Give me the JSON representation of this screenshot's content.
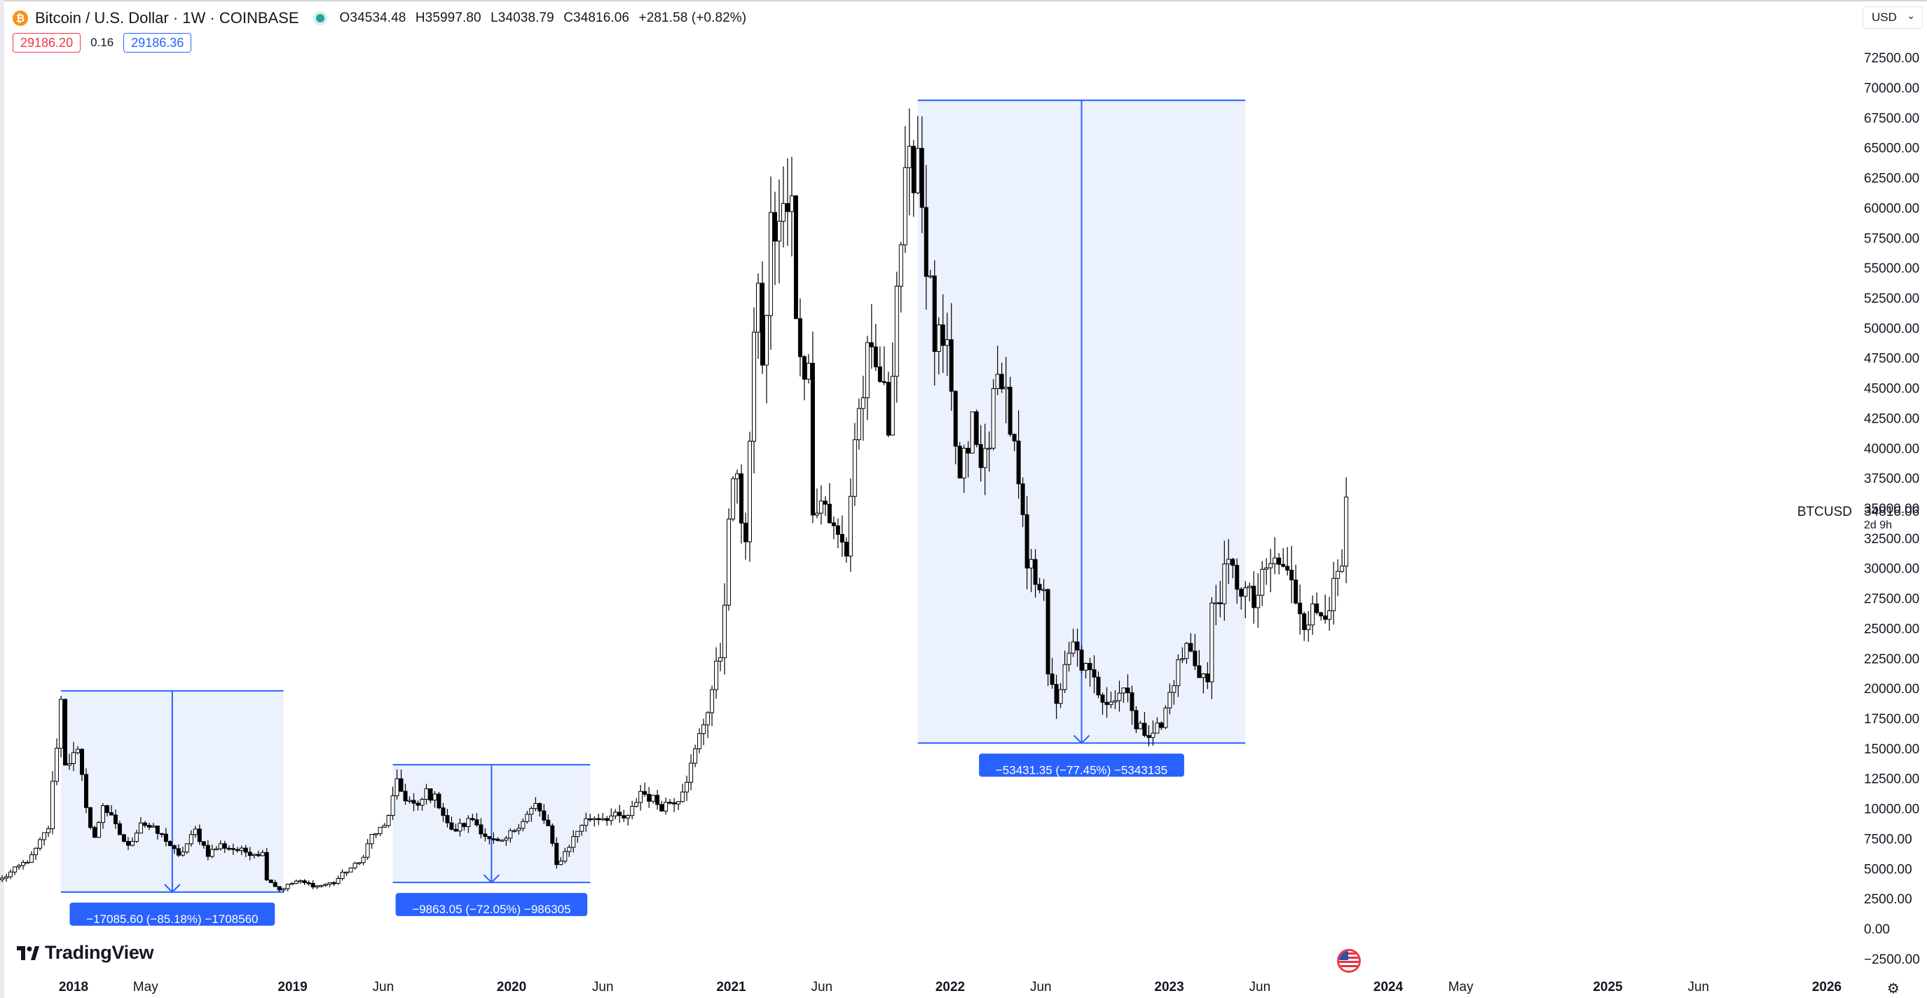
{
  "header": {
    "coin_icon": "bitcoin-icon",
    "coin_glyph": "₿",
    "title": "Bitcoin / U.S. Dollar · 1W · COINBASE",
    "ohlc": {
      "open": "O34534.48",
      "high": "H35997.80",
      "low": "L34038.79",
      "close": "C34816.06",
      "change": "+281.58 (+0.82%)"
    },
    "sell_price": "29186.20",
    "spread": "0.16",
    "buy_price": "29186.36"
  },
  "currency": {
    "label": "USD",
    "chevron": "⌄"
  },
  "branding": {
    "name": "TradingView"
  },
  "settings_icon": "gear-icon",
  "settings_glyph": "⚙",
  "colors": {
    "up": "#ffffff",
    "down": "#000000",
    "range_fill": "#ebf1fd",
    "range_line": "#2962ff",
    "badge": "#2962ff"
  },
  "chart_data": {
    "type": "candlestick",
    "symbol": "BTCUSD",
    "last_value": "34816.06",
    "countdown": "2d 9h",
    "ylim": [
      -2500,
      72500
    ],
    "y_ticks": [
      "72500.00",
      "70000.00",
      "67500.00",
      "65000.00",
      "62500.00",
      "60000.00",
      "57500.00",
      "55000.00",
      "52500.00",
      "50000.00",
      "47500.00",
      "45000.00",
      "42500.00",
      "40000.00",
      "37500.00",
      "35000.00",
      "32500.00",
      "30000.00",
      "27500.00",
      "25000.00",
      "22500.00",
      "20000.00",
      "17500.00",
      "15000.00",
      "12500.00",
      "10000.00",
      "7500.00",
      "5000.00",
      "2500.00",
      "0.00",
      "−2500.00"
    ],
    "x_ticks": [
      {
        "label": "2018",
        "date": "2018-01-01",
        "bold": true
      },
      {
        "label": "May",
        "date": "2018-05-01",
        "bold": false
      },
      {
        "label": "2019",
        "date": "2019-01-01",
        "bold": true
      },
      {
        "label": "Jun",
        "date": "2019-06-01",
        "bold": false
      },
      {
        "label": "2020",
        "date": "2020-01-01",
        "bold": true
      },
      {
        "label": "Jun",
        "date": "2020-06-01",
        "bold": false
      },
      {
        "label": "2021",
        "date": "2021-01-01",
        "bold": true
      },
      {
        "label": "Jun",
        "date": "2021-06-01",
        "bold": false
      },
      {
        "label": "2022",
        "date": "2022-01-01",
        "bold": true
      },
      {
        "label": "Jun",
        "date": "2022-06-01",
        "bold": false
      },
      {
        "label": "2023",
        "date": "2023-01-01",
        "bold": true
      },
      {
        "label": "Jun",
        "date": "2023-06-01",
        "bold": false
      },
      {
        "label": "2024",
        "date": "2024-01-01",
        "bold": true
      },
      {
        "label": "May",
        "date": "2024-05-01",
        "bold": false
      },
      {
        "label": "2025",
        "date": "2025-01-01",
        "bold": true
      },
      {
        "label": "Jun",
        "date": "2025-06-01",
        "bold": false
      },
      {
        "label": "2026",
        "date": "2026-01-01",
        "bold": true
      }
    ],
    "price_anchors": [
      [
        "2017-09-04",
        4200
      ],
      [
        "2017-10-23",
        6000
      ],
      [
        "2017-11-20",
        8500
      ],
      [
        "2017-12-11",
        19000
      ],
      [
        "2017-12-18",
        14000
      ],
      [
        "2018-01-08",
        14500
      ],
      [
        "2018-01-29",
        8500
      ],
      [
        "2018-02-05",
        7500
      ],
      [
        "2018-02-19",
        10500
      ],
      [
        "2018-03-12",
        8500
      ],
      [
        "2018-04-02",
        6800
      ],
      [
        "2018-04-23",
        9000
      ],
      [
        "2018-06-04",
        7500
      ],
      [
        "2018-06-25",
        6000
      ],
      [
        "2018-07-23",
        8200
      ],
      [
        "2018-08-13",
        6300
      ],
      [
        "2018-09-03",
        7000
      ],
      [
        "2018-10-08",
        6500
      ],
      [
        "2018-11-12",
        6300
      ],
      [
        "2018-11-19",
        4300
      ],
      [
        "2018-12-10",
        3300
      ],
      [
        "2019-01-07",
        4000
      ],
      [
        "2019-02-11",
        3600
      ],
      [
        "2019-03-11",
        3900
      ],
      [
        "2019-04-01",
        4900
      ],
      [
        "2019-04-22",
        5500
      ],
      [
        "2019-05-13",
        7800
      ],
      [
        "2019-06-03",
        8500
      ],
      [
        "2019-06-24",
        12000
      ],
      [
        "2019-07-08",
        11000
      ],
      [
        "2019-07-29",
        10000
      ],
      [
        "2019-08-12",
        11500
      ],
      [
        "2019-09-02",
        10500
      ],
      [
        "2019-09-23",
        8100
      ],
      [
        "2019-10-28",
        9200
      ],
      [
        "2019-11-25",
        7400
      ],
      [
        "2019-12-16",
        7100
      ],
      [
        "2020-01-13",
        8800
      ],
      [
        "2020-02-10",
        10300
      ],
      [
        "2020-03-02",
        8500
      ],
      [
        "2020-03-16",
        5300
      ],
      [
        "2020-04-06",
        7000
      ],
      [
        "2020-04-27",
        8800
      ],
      [
        "2020-05-11",
        9300
      ],
      [
        "2020-06-15",
        9400
      ],
      [
        "2020-07-13",
        9200
      ],
      [
        "2020-08-03",
        11500
      ],
      [
        "2020-09-07",
        10300
      ],
      [
        "2020-10-05",
        11000
      ],
      [
        "2020-10-26",
        13500
      ],
      [
        "2020-11-23",
        18500
      ],
      [
        "2020-12-14",
        23000
      ],
      [
        "2021-01-04",
        38000
      ],
      [
        "2021-01-25",
        33000
      ],
      [
        "2021-02-15",
        55000
      ],
      [
        "2021-02-22",
        46000
      ],
      [
        "2021-03-08",
        58000
      ],
      [
        "2021-04-12",
        60000
      ],
      [
        "2021-04-19",
        50000
      ],
      [
        "2021-05-10",
        46000
      ],
      [
        "2021-05-17",
        36000
      ],
      [
        "2021-06-07",
        35500
      ],
      [
        "2021-06-21",
        33000
      ],
      [
        "2021-07-12",
        31500
      ],
      [
        "2021-07-26",
        41000
      ],
      [
        "2021-08-16",
        47000
      ],
      [
        "2021-09-06",
        46000
      ],
      [
        "2021-09-20",
        42000
      ],
      [
        "2021-10-04",
        54000
      ],
      [
        "2021-10-18",
        61000
      ],
      [
        "2021-11-08",
        65500
      ],
      [
        "2021-11-22",
        56000
      ],
      [
        "2021-12-06",
        49000
      ],
      [
        "2021-12-27",
        47000
      ],
      [
        "2022-01-17",
        37000
      ],
      [
        "2022-02-07",
        42000
      ],
      [
        "2022-02-21",
        38000
      ],
      [
        "2022-03-28",
        47000
      ],
      [
        "2022-04-18",
        39500
      ],
      [
        "2022-05-09",
        30000
      ],
      [
        "2022-06-06",
        29000
      ],
      [
        "2022-06-13",
        20500
      ],
      [
        "2022-06-27",
        19200
      ],
      [
        "2022-07-25",
        23500
      ],
      [
        "2022-08-15",
        21500
      ],
      [
        "2022-09-12",
        19500
      ],
      [
        "2022-10-03",
        19300
      ],
      [
        "2022-10-24",
        20500
      ],
      [
        "2022-11-07",
        16500
      ],
      [
        "2022-12-19",
        16800
      ],
      [
        "2023-01-09",
        21000
      ],
      [
        "2023-01-30",
        23500
      ],
      [
        "2023-03-06",
        20500
      ],
      [
        "2023-03-13",
        26500
      ],
      [
        "2023-04-10",
        30000
      ],
      [
        "2023-05-01",
        28500
      ],
      [
        "2023-05-22",
        27000
      ],
      [
        "2023-06-19",
        30500
      ],
      [
        "2023-07-10",
        30200
      ],
      [
        "2023-08-14",
        26000
      ],
      [
        "2023-09-11",
        26500
      ],
      [
        "2023-10-02",
        28000
      ],
      [
        "2023-10-16",
        30000
      ],
      [
        "2023-10-23",
        34500
      ]
    ],
    "measures": [
      {
        "start": "2017-12-11",
        "end": "2018-12-17",
        "high": 19850,
        "low": 3100,
        "label": "−17085.60 (−85.18%) −1708560"
      },
      {
        "start": "2019-06-17",
        "end": "2020-05-11",
        "high": 13700,
        "low": 3900,
        "label": "−9863.05 (−72.05%) −986305"
      },
      {
        "start": "2021-11-08",
        "end": "2023-05-08",
        "high": 69000,
        "low": 15500,
        "label": "−53431.35 (−77.45%) −5343135"
      }
    ]
  }
}
